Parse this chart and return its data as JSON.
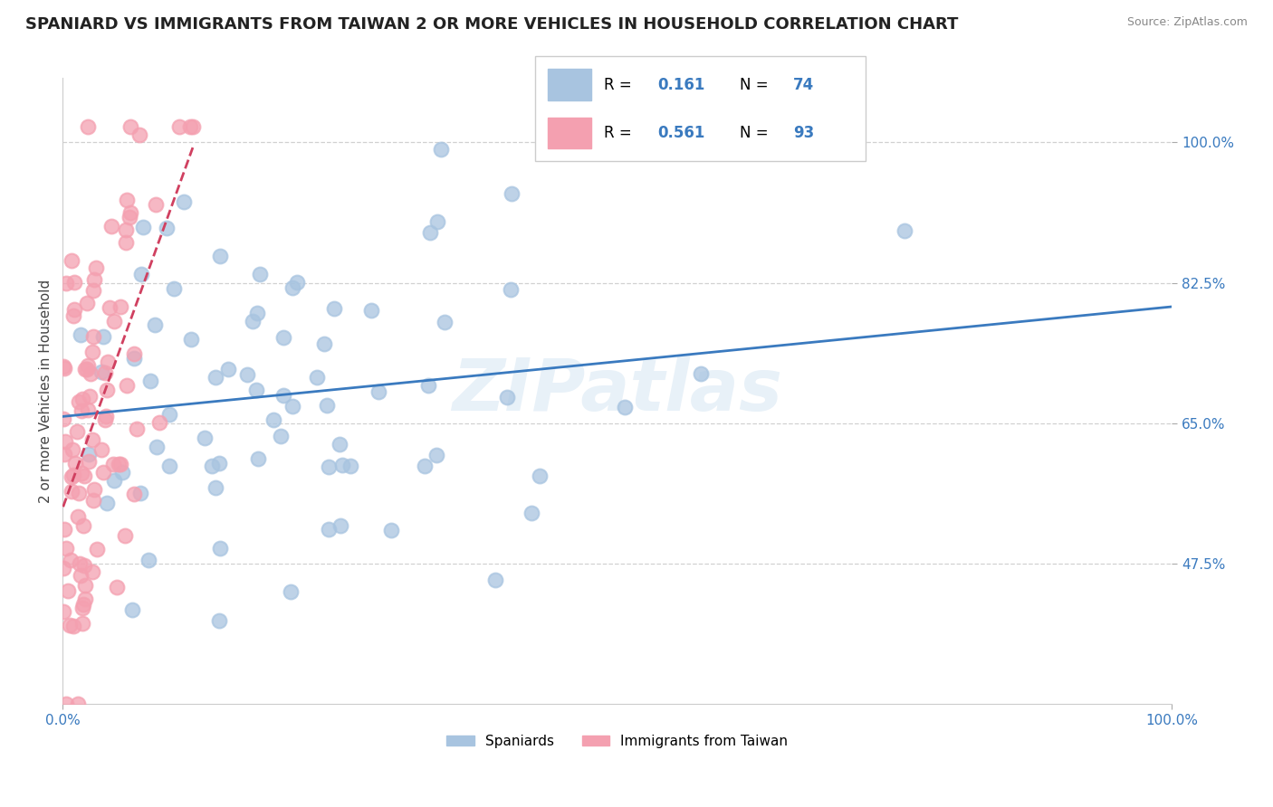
{
  "title": "SPANIARD VS IMMIGRANTS FROM TAIWAN 2 OR MORE VEHICLES IN HOUSEHOLD CORRELATION CHART",
  "source": "Source: ZipAtlas.com",
  "ylabel": "2 or more Vehicles in Household",
  "legend1_label": "Spaniards",
  "legend2_label": "Immigrants from Taiwan",
  "R_blue": 0.161,
  "N_blue": 74,
  "R_pink": 0.561,
  "N_pink": 93,
  "blue_color": "#a8c4e0",
  "pink_color": "#f4a0b0",
  "blue_line_color": "#3a7abf",
  "pink_line_color": "#d04060",
  "xmin": 0.0,
  "xmax": 1.0,
  "ymin": 0.3,
  "ymax": 1.08,
  "yticks": [
    0.475,
    0.65,
    0.825,
    1.0
  ],
  "ytick_labels": [
    "47.5%",
    "65.0%",
    "82.5%",
    "100.0%"
  ]
}
